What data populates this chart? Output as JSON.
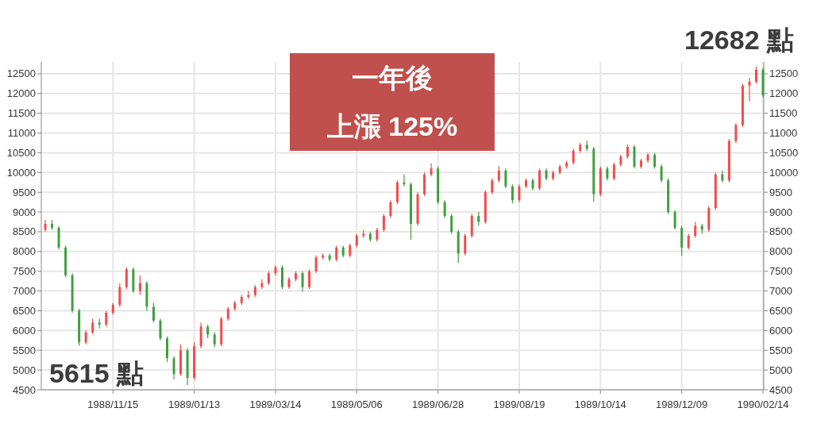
{
  "chart_data": {
    "type": "candlestick",
    "categories": [
      null,
      null,
      null,
      null,
      null,
      null,
      null,
      null,
      null,
      null,
      "1988/11/15",
      null,
      null,
      null,
      null,
      null,
      null,
      null,
      null,
      null,
      null,
      null,
      "1989/01/13",
      null,
      null,
      null,
      null,
      null,
      null,
      null,
      null,
      null,
      null,
      null,
      "1989/03/14",
      null,
      null,
      null,
      null,
      null,
      null,
      null,
      null,
      null,
      null,
      null,
      "1989/05/06",
      null,
      null,
      null,
      null,
      null,
      null,
      null,
      null,
      null,
      null,
      null,
      "1989/06/28",
      null,
      null,
      null,
      null,
      null,
      null,
      null,
      null,
      null,
      null,
      null,
      "1989/08/19",
      null,
      null,
      null,
      null,
      null,
      null,
      null,
      null,
      null,
      null,
      null,
      "1989/10/14",
      null,
      null,
      null,
      null,
      null,
      null,
      null,
      null,
      null,
      null,
      null,
      "1989/12/09",
      null,
      null,
      null,
      null,
      null,
      null,
      null,
      null,
      null,
      null,
      null,
      "1990/02/14"
    ],
    "ohlc": [
      [
        8550,
        8800,
        8500,
        8700
      ],
      [
        8700,
        8800,
        8550,
        8600
      ],
      [
        8600,
        8650,
        8050,
        8100
      ],
      [
        8100,
        8150,
        7350,
        7400
      ],
      [
        7400,
        7450,
        6450,
        6500
      ],
      [
        6500,
        6550,
        5615,
        5700
      ],
      [
        5700,
        6000,
        5650,
        5950
      ],
      [
        5950,
        6300,
        5900,
        6200
      ],
      [
        6200,
        6300,
        6050,
        6150
      ],
      [
        6150,
        6500,
        6100,
        6450
      ],
      [
        6450,
        6700,
        6400,
        6650
      ],
      [
        6650,
        7200,
        6600,
        7100
      ],
      [
        7100,
        7600,
        7050,
        7550
      ],
      [
        7550,
        7600,
        6950,
        7000
      ],
      [
        7000,
        7400,
        6900,
        7200
      ],
      [
        7200,
        7250,
        6500,
        6600
      ],
      [
        6600,
        6700,
        6200,
        6250
      ],
      [
        6250,
        6300,
        5750,
        5800
      ],
      [
        5800,
        5850,
        5200,
        5300
      ],
      [
        5300,
        5350,
        4760,
        4900
      ],
      [
        4900,
        5650,
        4850,
        5500
      ],
      [
        5500,
        5550,
        4620,
        4800
      ],
      [
        4800,
        5700,
        4750,
        5600
      ],
      [
        5600,
        6200,
        5550,
        6100
      ],
      [
        6100,
        6150,
        5800,
        5900
      ],
      [
        5900,
        5950,
        5570,
        5650
      ],
      [
        5650,
        6350,
        5600,
        6300
      ],
      [
        6300,
        6600,
        6250,
        6550
      ],
      [
        6550,
        6750,
        6500,
        6700
      ],
      [
        6700,
        6900,
        6650,
        6850
      ],
      [
        6850,
        7000,
        6800,
        6900
      ],
      [
        6900,
        7150,
        6850,
        7100
      ],
      [
        7100,
        7300,
        7050,
        7200
      ],
      [
        7200,
        7500,
        7150,
        7450
      ],
      [
        7450,
        7650,
        7400,
        7600
      ],
      [
        7600,
        7650,
        7050,
        7100
      ],
      [
        7100,
        7350,
        7050,
        7300
      ],
      [
        7300,
        7500,
        7250,
        7450
      ],
      [
        7450,
        7500,
        6980,
        7100
      ],
      [
        7100,
        7550,
        7050,
        7500
      ],
      [
        7500,
        7900,
        7450,
        7850
      ],
      [
        7850,
        7950,
        7800,
        7900
      ],
      [
        7900,
        7950,
        7750,
        7800
      ],
      [
        7800,
        8150,
        7750,
        8100
      ],
      [
        8100,
        8150,
        7850,
        7900
      ],
      [
        7900,
        8200,
        7850,
        8150
      ],
      [
        8150,
        8450,
        8100,
        8400
      ],
      [
        8400,
        8550,
        8350,
        8450
      ],
      [
        8450,
        8500,
        8250,
        8300
      ],
      [
        8300,
        8600,
        8250,
        8550
      ],
      [
        8550,
        8950,
        8500,
        8900
      ],
      [
        8900,
        9300,
        8850,
        9250
      ],
      [
        9250,
        9800,
        9200,
        9750
      ],
      [
        9750,
        9950,
        9650,
        9700
      ],
      [
        9700,
        9750,
        8300,
        8700
      ],
      [
        8700,
        9500,
        8650,
        9450
      ],
      [
        9450,
        10000,
        9400,
        9950
      ],
      [
        9950,
        10230,
        9900,
        10100
      ],
      [
        10100,
        10150,
        9200,
        9250
      ],
      [
        9250,
        9300,
        8850,
        8900
      ],
      [
        8900,
        8950,
        8450,
        8500
      ],
      [
        8500,
        8550,
        7710,
        7950
      ],
      [
        7950,
        8450,
        7900,
        8400
      ],
      [
        8400,
        8950,
        8350,
        8900
      ],
      [
        8900,
        9000,
        8650,
        8750
      ],
      [
        8750,
        9550,
        8700,
        9500
      ],
      [
        9500,
        9850,
        9450,
        9800
      ],
      [
        9800,
        10160,
        9750,
        10050
      ],
      [
        10050,
        10100,
        9600,
        9650
      ],
      [
        9650,
        9700,
        9220,
        9300
      ],
      [
        9300,
        9700,
        9250,
        9650
      ],
      [
        9650,
        9850,
        9600,
        9800
      ],
      [
        9800,
        9850,
        9550,
        9600
      ],
      [
        9600,
        10100,
        9550,
        10050
      ],
      [
        10050,
        10100,
        9800,
        9850
      ],
      [
        9850,
        10050,
        9800,
        10000
      ],
      [
        10000,
        10200,
        9950,
        10150
      ],
      [
        10150,
        10300,
        10100,
        10250
      ],
      [
        10250,
        10600,
        10200,
        10550
      ],
      [
        10550,
        10750,
        10500,
        10700
      ],
      [
        10700,
        10810,
        10550,
        10600
      ],
      [
        10600,
        10650,
        9260,
        9450
      ],
      [
        9450,
        10150,
        9400,
        10100
      ],
      [
        10100,
        10150,
        9800,
        9850
      ],
      [
        9850,
        10250,
        9800,
        10200
      ],
      [
        10200,
        10450,
        10150,
        10400
      ],
      [
        10400,
        10710,
        10350,
        10650
      ],
      [
        10650,
        10700,
        10100,
        10150
      ],
      [
        10150,
        10350,
        10100,
        10300
      ],
      [
        10300,
        10500,
        10250,
        10450
      ],
      [
        10450,
        10500,
        10100,
        10150
      ],
      [
        10150,
        10200,
        9750,
        9800
      ],
      [
        9800,
        9850,
        8950,
        9000
      ],
      [
        9000,
        9050,
        8550,
        8600
      ],
      [
        8600,
        8650,
        7890,
        8100
      ],
      [
        8100,
        8450,
        8050,
        8400
      ],
      [
        8400,
        8750,
        8350,
        8650
      ],
      [
        8650,
        8700,
        8450,
        8550
      ],
      [
        8550,
        9150,
        8500,
        9100
      ],
      [
        9100,
        10000,
        9050,
        9950
      ],
      [
        9950,
        10050,
        9750,
        9800
      ],
      [
        9800,
        10850,
        9750,
        10800
      ],
      [
        10800,
        11250,
        10750,
        11200
      ],
      [
        11200,
        12250,
        11150,
        12200
      ],
      [
        12200,
        12400,
        11800,
        12300
      ],
      [
        12300,
        12682,
        12250,
        12600
      ],
      [
        12600,
        12650,
        11900,
        11950
      ]
    ],
    "colors": [
      "#f24b4b",
      "#3f9f3f",
      "#3f9f3f",
      "#3f9f3f",
      "#3f9f3f",
      "#3f9f3f",
      "#f24b4b",
      "#f24b4b",
      "#3f9f3f",
      "#f24b4b",
      "#f24b4b",
      "#f24b4b",
      "#f24b4b",
      "#3f9f3f",
      "#f24b4b",
      "#3f9f3f",
      "#3f9f3f",
      "#3f9f3f",
      "#3f9f3f",
      "#3f9f3f",
      "#f24b4b",
      "#3f9f3f",
      "#f24b4b",
      "#f24b4b",
      "#3f9f3f",
      "#3f9f3f",
      "#f24b4b",
      "#f24b4b",
      "#f24b4b",
      "#f24b4b",
      "#f24b4b",
      "#f24b4b",
      "#f24b4b",
      "#f24b4b",
      "#f24b4b",
      "#3f9f3f",
      "#f24b4b",
      "#f24b4b",
      "#3f9f3f",
      "#f24b4b",
      "#f24b4b",
      "#f24b4b",
      "#3f9f3f",
      "#f24b4b",
      "#3f9f3f",
      "#f24b4b",
      "#f24b4b",
      "#f24b4b",
      "#3f9f3f",
      "#f24b4b",
      "#f24b4b",
      "#f24b4b",
      "#f24b4b",
      "#3f9f3f",
      "#3f9f3f",
      "#f24b4b",
      "#f24b4b",
      "#f24b4b",
      "#3f9f3f",
      "#3f9f3f",
      "#3f9f3f",
      "#3f9f3f",
      "#f24b4b",
      "#f24b4b",
      "#3f9f3f",
      "#f24b4b",
      "#f24b4b",
      "#f24b4b",
      "#3f9f3f",
      "#3f9f3f",
      "#f24b4b",
      "#f24b4b",
      "#3f9f3f",
      "#f24b4b",
      "#3f9f3f",
      "#f24b4b",
      "#f24b4b",
      "#f24b4b",
      "#f24b4b",
      "#f24b4b",
      "#3f9f3f",
      "#3f9f3f",
      "#f24b4b",
      "#3f9f3f",
      "#f24b4b",
      "#f24b4b",
      "#f24b4b",
      "#3f9f3f",
      "#f24b4b",
      "#f24b4b",
      "#3f9f3f",
      "#3f9f3f",
      "#3f9f3f",
      "#3f9f3f",
      "#3f9f3f",
      "#f24b4b",
      "#f24b4b",
      "#3f9f3f",
      "#f24b4b",
      "#f24b4b",
      "#3f9f3f",
      "#f24b4b",
      "#f24b4b",
      "#f24b4b",
      "#f24b4b",
      "#f24b4b",
      "#3f9f3f"
    ],
    "ylim": [
      4500,
      12800
    ],
    "yticks": [
      4500,
      5000,
      5500,
      6000,
      6500,
      7000,
      7500,
      8000,
      8500,
      9000,
      9500,
      10000,
      10500,
      11000,
      11500,
      12000,
      12500
    ],
    "y2lim": [
      4500,
      12800
    ],
    "y2ticks": [
      4500,
      5000,
      5500,
      6000,
      6500,
      7000,
      7500,
      8000,
      8500,
      9000,
      9500,
      10000,
      10500,
      11000,
      11500,
      12000,
      12500
    ],
    "grid": true,
    "annotations": [
      "一年後",
      "上漲 125%",
      "12682 點",
      "5615 點"
    ]
  }
}
